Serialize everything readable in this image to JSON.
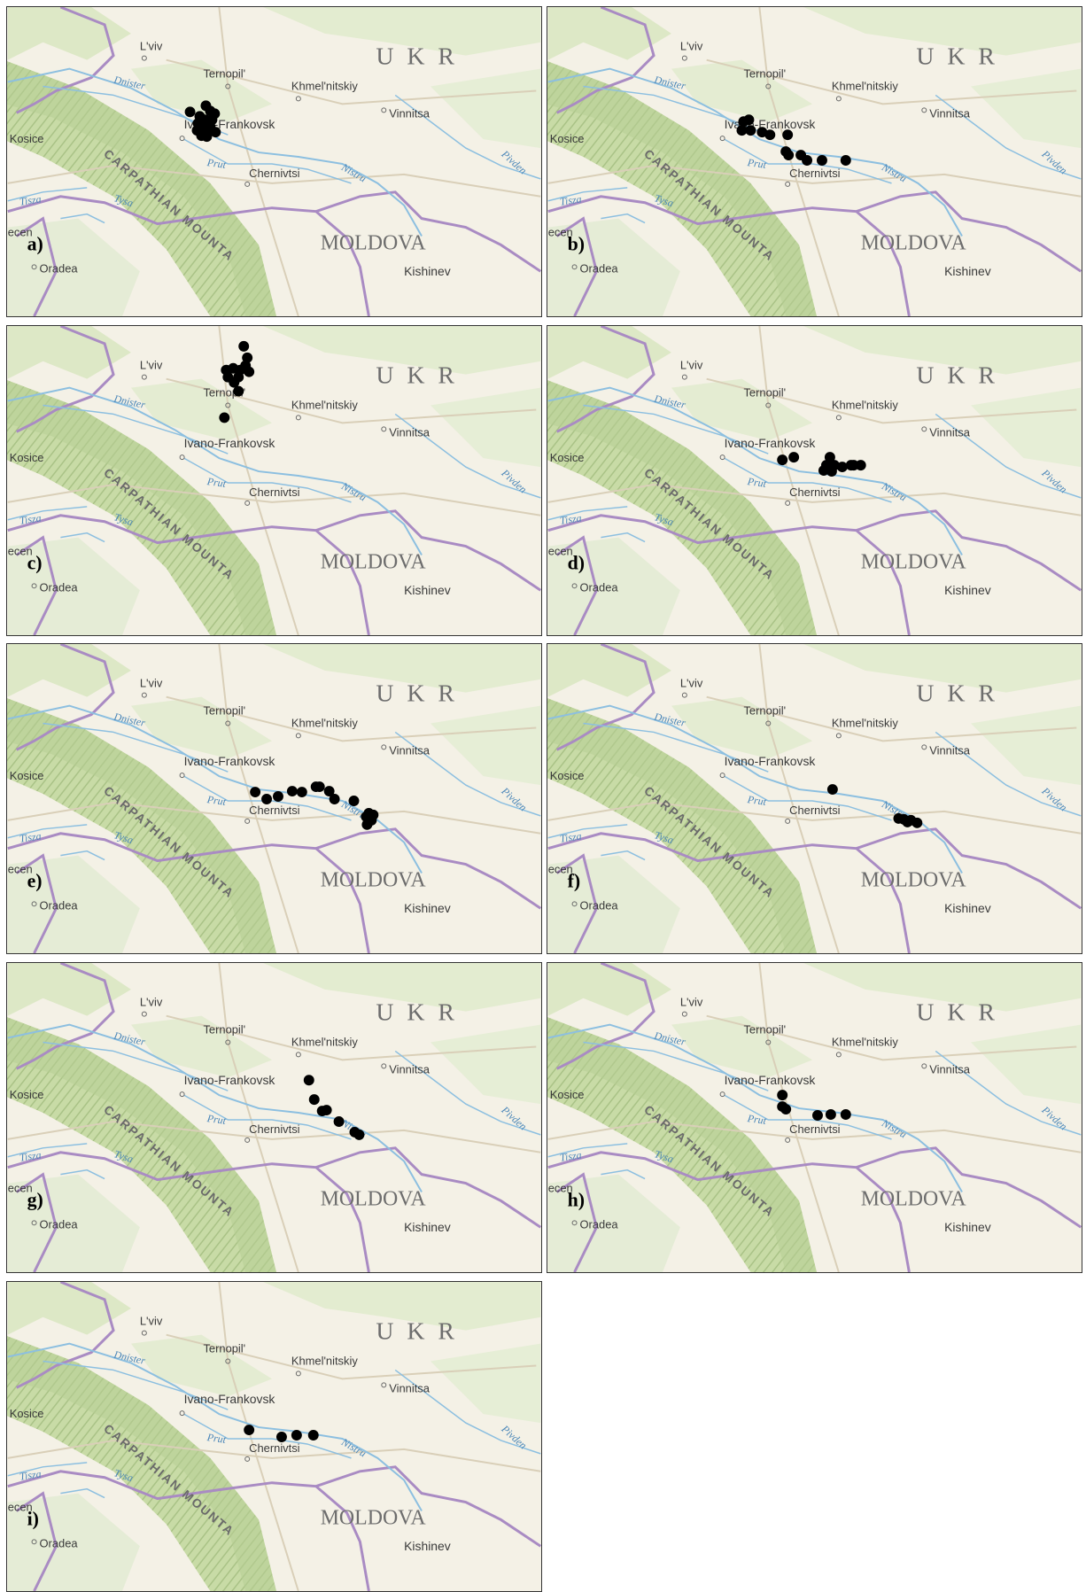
{
  "map_labels": {
    "lviv": "L'viv",
    "ternopil": "Ternopil'",
    "khmelnitskiy": "Khmel'nitskiy",
    "vinnitsa": "Vinnitsa",
    "ivano_frankovsk": "Ivano-Frankovsk",
    "chernivtsi": "Chernivtsi",
    "kosice": "Kosice",
    "oradea": "Oradea",
    "kishinev": "Kishinev",
    "debrecen": "ecen",
    "dnister": "Dnister",
    "prut": "Prut",
    "nistru": "Nistru",
    "pivden": "Pivden",
    "tisza": "Tisza",
    "tysa": "Tysa",
    "country_ukr": "U K R",
    "country_moldova": "MOLDOVA",
    "mountains": "CARPATHIAN MOUNTA"
  },
  "colors": {
    "land": "#f4f1e6",
    "forest": "#cfe0b0",
    "mountain_shade": "#b9cf98",
    "river": "#7fb3d5",
    "border": "#a886c0",
    "road": "#dcd4c0",
    "point": "#000000"
  },
  "panels": [
    {
      "label": "a)",
      "points": [
        [
          207,
          119
        ],
        [
          225,
          112
        ],
        [
          230,
          118
        ],
        [
          235,
          121
        ],
        [
          218,
          124
        ],
        [
          224,
          128
        ],
        [
          232,
          128
        ],
        [
          216,
          132
        ],
        [
          226,
          134
        ],
        [
          230,
          136
        ],
        [
          215,
          140
        ],
        [
          222,
          141
        ],
        [
          228,
          139
        ],
        [
          236,
          142
        ],
        [
          220,
          146
        ],
        [
          226,
          147
        ]
      ]
    },
    {
      "label": "b)",
      "points": [
        [
          222,
          130
        ],
        [
          228,
          128
        ],
        [
          220,
          140
        ],
        [
          230,
          140
        ],
        [
          243,
          142
        ],
        [
          252,
          145
        ],
        [
          272,
          145
        ],
        [
          270,
          164
        ],
        [
          273,
          168
        ],
        [
          287,
          168
        ],
        [
          294,
          174
        ],
        [
          311,
          174
        ],
        [
          338,
          174
        ]
      ]
    },
    {
      "label": "c)",
      "points": [
        [
          268,
          23
        ],
        [
          272,
          36
        ],
        [
          248,
          50
        ],
        [
          256,
          48
        ],
        [
          264,
          50
        ],
        [
          274,
          52
        ],
        [
          250,
          58
        ],
        [
          262,
          58
        ],
        [
          257,
          64
        ],
        [
          262,
          74
        ],
        [
          246,
          104
        ],
        [
          270,
          45
        ]
      ]
    },
    {
      "label": "d)",
      "points": [
        [
          266,
          152
        ],
        [
          279,
          149
        ],
        [
          320,
          149
        ],
        [
          325,
          158
        ],
        [
          316,
          158
        ],
        [
          313,
          164
        ],
        [
          322,
          165
        ],
        [
          334,
          160
        ],
        [
          344,
          158
        ],
        [
          355,
          158
        ],
        [
          347,
          158
        ]
      ]
    },
    {
      "label": "e)",
      "points": [
        [
          281,
          168
        ],
        [
          294,
          176
        ],
        [
          307,
          173
        ],
        [
          323,
          167
        ],
        [
          334,
          168
        ],
        [
          350,
          162
        ],
        [
          354,
          162
        ],
        [
          365,
          167
        ],
        [
          371,
          176
        ],
        [
          393,
          178
        ],
        [
          410,
          192
        ],
        [
          415,
          194
        ],
        [
          407,
          196
        ],
        [
          413,
          200
        ],
        [
          408,
          205
        ]
      ]
    },
    {
      "label": "f)",
      "points": [
        [
          323,
          165
        ],
        [
          398,
          198
        ],
        [
          404,
          199
        ],
        [
          412,
          200
        ],
        [
          408,
          202
        ],
        [
          419,
          203
        ]
      ]
    },
    {
      "label": "g)",
      "points": [
        [
          342,
          133
        ],
        [
          348,
          155
        ],
        [
          357,
          168
        ],
        [
          362,
          167
        ],
        [
          376,
          180
        ],
        [
          394,
          192
        ],
        [
          399,
          195
        ]
      ]
    },
    {
      "label": "h)",
      "points": [
        [
          266,
          150
        ],
        [
          266,
          163
        ],
        [
          270,
          166
        ],
        [
          306,
          173
        ],
        [
          321,
          172
        ],
        [
          338,
          172
        ]
      ]
    },
    {
      "label": "i)",
      "points": [
        [
          274,
          168
        ],
        [
          311,
          176
        ],
        [
          328,
          174
        ],
        [
          347,
          174
        ]
      ]
    }
  ]
}
